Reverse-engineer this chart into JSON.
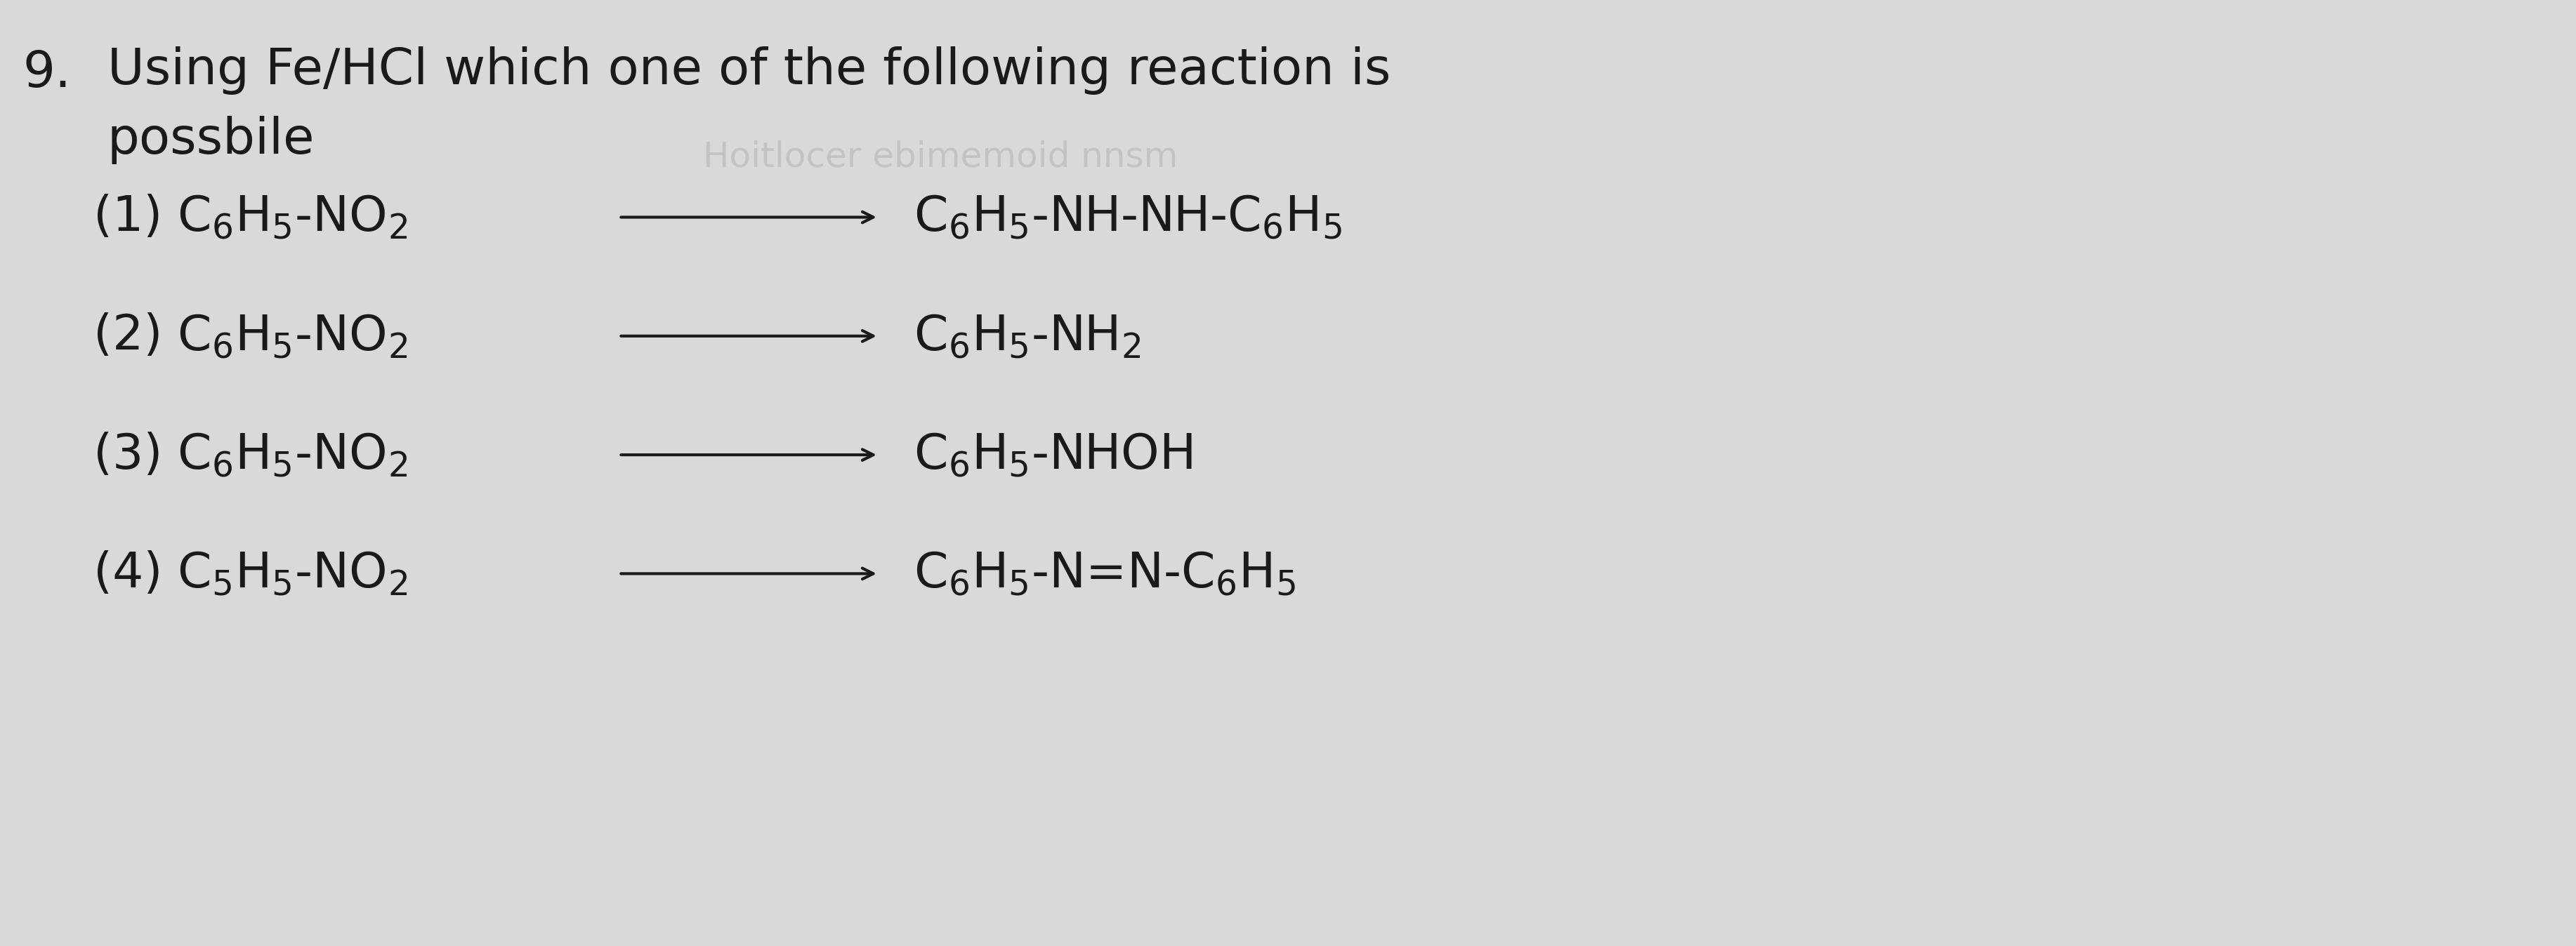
{
  "background_color": "#d9d9d9",
  "title_line1": "Using Fe/HCl which one of the following reaction is",
  "title_line2": "possbile",
  "question_num": "9.",
  "options": [
    {
      "num": "(1)",
      "reactant": "C$_6$H$_5$-NO$_2$",
      "product": "C$_6$H$_5$-NH-NH-C$_6$H$_5$"
    },
    {
      "num": "(2)",
      "reactant": "C$_6$H$_5$-NO$_2$",
      "product": "C$_6$H$_5$-NH$_2$"
    },
    {
      "num": "(3)",
      "reactant": "C$_6$H$_5$-NO$_2$",
      "product": "C$_6$H$_5$-NHOH"
    },
    {
      "num": "(4)",
      "reactant": "C$_5$H$_5$-NO$_2$",
      "product": "C$_6$H$_5$-N=N-C$_6$H$_5$"
    }
  ],
  "text_color": "#1a1a1a",
  "arrow_color": "#1a1a1a",
  "fontsize_title": 52,
  "fontsize_option": 50,
  "fontsize_qnum": 52
}
